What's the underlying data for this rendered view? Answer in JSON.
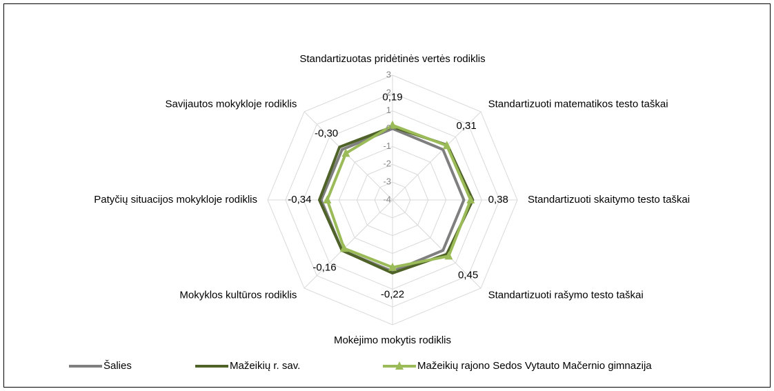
{
  "chart_data": {
    "type": "radar",
    "categories": [
      "Standartizuotas pridėtinės vertės rodiklis",
      "Standartizuoti matematikos testo taškai",
      "Standartizuoti skaitymo testo taškai",
      "Standartizuoti rašymo testo taškai",
      "Mokėjimo mokytis rodiklis",
      "Mokyklos kultūros rodiklis",
      "Patyčių situacijos mokykloje rodiklis",
      "Savijautos mokykloje rodiklis"
    ],
    "ylim": [
      -4,
      3
    ],
    "yticks": [
      -4,
      -3,
      -2,
      -1,
      0,
      1,
      2,
      3
    ],
    "grid": true,
    "legend": "bottom",
    "series": [
      {
        "name": "Šalies",
        "color": "#7f7f7f",
        "values": [
          0,
          0,
          0,
          0,
          0,
          0,
          0,
          0
        ]
      },
      {
        "name": "Mažeikių r. sav.",
        "color": "#4f6228",
        "values": [
          0.1,
          0.35,
          0.5,
          0.3,
          0.1,
          0,
          0.1,
          0.2
        ]
      },
      {
        "name": "Mažeikių rajono Sedos Vytauto Mačernio gimnazija",
        "color": "#9bbb59",
        "marker": "triangle",
        "values": [
          0.19,
          0.31,
          0.38,
          0.45,
          -0.22,
          -0.16,
          -0.34,
          -0.3
        ],
        "value_labels": [
          "0,19",
          "0,31",
          "0,38",
          "0,45",
          "-0,22",
          "-0,16",
          "-0,34",
          "-0,30"
        ]
      }
    ]
  }
}
